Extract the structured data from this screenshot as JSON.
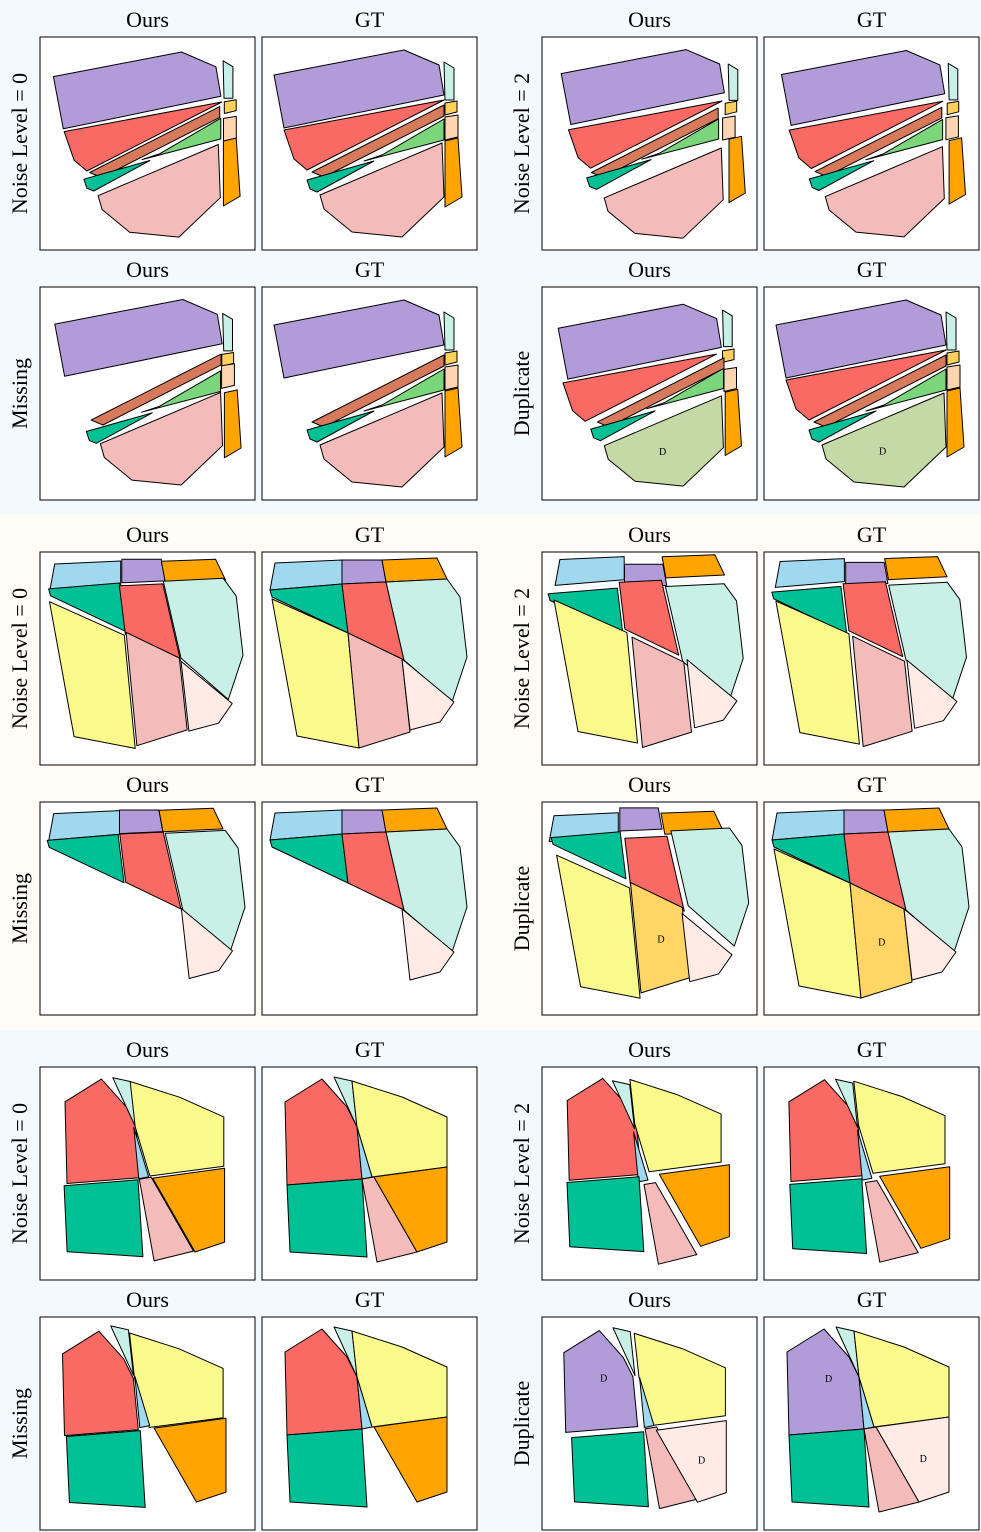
{
  "blocks": [
    {
      "cells": [
        {
          "row_label": "Noise Level = 0",
          "panels": [
            {
              "title": "Ours"
            },
            {
              "title": "GT"
            }
          ]
        },
        {
          "row_label": "Noise Level = 2",
          "panels": [
            {
              "title": "Ours"
            },
            {
              "title": "GT"
            }
          ]
        },
        {
          "row_label": "Missing",
          "panels": [
            {
              "title": "Ours"
            },
            {
              "title": "GT"
            }
          ]
        },
        {
          "row_label": "Duplicate",
          "panels": [
            {
              "title": "Ours",
              "marks": [
                "D"
              ]
            },
            {
              "title": "GT",
              "marks": [
                "D"
              ]
            }
          ]
        }
      ]
    },
    {
      "cells": [
        {
          "row_label": "Noise Level = 0",
          "panels": [
            {
              "title": "Ours"
            },
            {
              "title": "GT"
            }
          ]
        },
        {
          "row_label": "Noise Level = 2",
          "panels": [
            {
              "title": "Ours"
            },
            {
              "title": "GT"
            }
          ]
        },
        {
          "row_label": "Missing",
          "panels": [
            {
              "title": "Ours"
            },
            {
              "title": "GT"
            }
          ]
        },
        {
          "row_label": "Duplicate",
          "panels": [
            {
              "title": "Ours",
              "marks": [
                "D"
              ]
            },
            {
              "title": "GT",
              "marks": [
                "D"
              ]
            }
          ]
        }
      ]
    },
    {
      "cells": [
        {
          "row_label": "Noise Level = 0",
          "panels": [
            {
              "title": "Ours"
            },
            {
              "title": "GT"
            }
          ]
        },
        {
          "row_label": "Noise Level = 2",
          "panels": [
            {
              "title": "Ours"
            },
            {
              "title": "GT"
            }
          ]
        },
        {
          "row_label": "Missing",
          "panels": [
            {
              "title": "Ours"
            },
            {
              "title": "GT"
            }
          ]
        },
        {
          "row_label": "Duplicate",
          "panels": [
            {
              "title": "Ours",
              "marks": [
                "D",
                "D"
              ]
            },
            {
              "title": "GT",
              "marks": [
                "D",
                "D"
              ]
            }
          ]
        }
      ]
    }
  ]
}
